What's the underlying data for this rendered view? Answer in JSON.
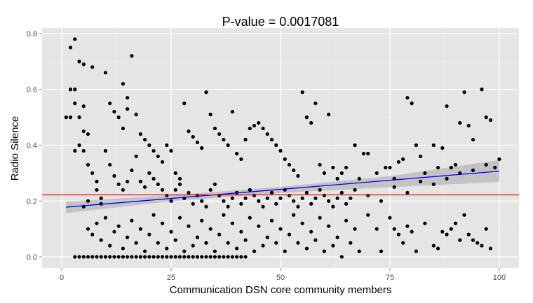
{
  "chart_data": {
    "type": "scatter",
    "title": "P-value = 0.0017081",
    "xlabel": "Communication DSN core community members",
    "ylabel": "Radio Silence",
    "xlim": [
      -4.5,
      104.5
    ],
    "ylim": [
      -0.04,
      0.82
    ],
    "x_ticks": [
      0,
      25,
      50,
      75,
      100
    ],
    "y_ticks": [
      0.0,
      0.2,
      0.4,
      0.6,
      0.8
    ],
    "x_tick_labels": [
      "0",
      "25",
      "50",
      "75",
      "100"
    ],
    "y_tick_labels": [
      "0.0",
      "0.2",
      "0.4",
      "0.6",
      "0.8"
    ],
    "grid": true,
    "legend": "none",
    "colors": {
      "panel": "#e5e5e5",
      "grid": "#ffffff",
      "points": "#000000",
      "fit_line": "#0000ff",
      "confidence_band": "#999999",
      "reference_line": "#ff0000"
    },
    "fit_line": {
      "x": [
        1,
        100
      ],
      "y": [
        0.178,
        0.307
      ]
    },
    "confidence_band": {
      "x": [
        1,
        25,
        50,
        75,
        100
      ],
      "lower": [
        0.157,
        0.199,
        0.229,
        0.25,
        0.268
      ],
      "upper": [
        0.198,
        0.22,
        0.251,
        0.289,
        0.347
      ]
    },
    "reference_line": {
      "y": 0.222
    },
    "points": [
      [
        1,
        0.5
      ],
      [
        2,
        0.5
      ],
      [
        2,
        0.75
      ],
      [
        3,
        0.78
      ],
      [
        2,
        0.6
      ],
      [
        3,
        0.6
      ],
      [
        3,
        0.55
      ],
      [
        3,
        0.38
      ],
      [
        4,
        0.7
      ],
      [
        5,
        0.69
      ],
      [
        7,
        0.68
      ],
      [
        10,
        0.66
      ],
      [
        14,
        0.62
      ],
      [
        16,
        0.72
      ],
      [
        4,
        0.5
      ],
      [
        5,
        0.54
      ],
      [
        4,
        0.4
      ],
      [
        5,
        0.38
      ],
      [
        5,
        0.45
      ],
      [
        6,
        0.44
      ],
      [
        6,
        0.33
      ],
      [
        7,
        0.3
      ],
      [
        6,
        0.2
      ],
      [
        5,
        0.18
      ],
      [
        8,
        0.27
      ],
      [
        8,
        0.24
      ],
      [
        9,
        0.21
      ],
      [
        9,
        0.19
      ],
      [
        11,
        0.55
      ],
      [
        12,
        0.52
      ],
      [
        13,
        0.5
      ],
      [
        14,
        0.46
      ],
      [
        15,
        0.57
      ],
      [
        15,
        0.53
      ],
      [
        17,
        0.51
      ],
      [
        18,
        0.44
      ],
      [
        19,
        0.42
      ],
      [
        20,
        0.4
      ],
      [
        21,
        0.38
      ],
      [
        22,
        0.36
      ],
      [
        23,
        0.34
      ],
      [
        24,
        0.4
      ],
      [
        25,
        0.38
      ],
      [
        26,
        0.3
      ],
      [
        27,
        0.28
      ],
      [
        28,
        0.55
      ],
      [
        29,
        0.45
      ],
      [
        30,
        0.43
      ],
      [
        31,
        0.41
      ],
      [
        32,
        0.39
      ],
      [
        33,
        0.59
      ],
      [
        34,
        0.51
      ],
      [
        35,
        0.46
      ],
      [
        36,
        0.44
      ],
      [
        37,
        0.42
      ],
      [
        38,
        0.4
      ],
      [
        39,
        0.52
      ],
      [
        40,
        0.37
      ],
      [
        41,
        0.35
      ],
      [
        42,
        0.42
      ],
      [
        43,
        0.46
      ],
      [
        44,
        0.47
      ],
      [
        45,
        0.48
      ],
      [
        46,
        0.46
      ],
      [
        47,
        0.44
      ],
      [
        48,
        0.42
      ],
      [
        49,
        0.4
      ],
      [
        50,
        0.38
      ],
      [
        51,
        0.35
      ],
      [
        52,
        0.33
      ],
      [
        53,
        0.31
      ],
      [
        54,
        0.29
      ],
      [
        55,
        0.59
      ],
      [
        56,
        0.5
      ],
      [
        57,
        0.48
      ],
      [
        58,
        0.55
      ],
      [
        59,
        0.33
      ],
      [
        60,
        0.3
      ],
      [
        61,
        0.51
      ],
      [
        62,
        0.32
      ],
      [
        63,
        0.28
      ],
      [
        64,
        0.3
      ],
      [
        65,
        0.32
      ],
      [
        67,
        0.4
      ],
      [
        68,
        0.28
      ],
      [
        69,
        0.37
      ],
      [
        70,
        0.37
      ],
      [
        72,
        0.3
      ],
      [
        74,
        0.32
      ],
      [
        75,
        0.32
      ],
      [
        76,
        0.28
      ],
      [
        77,
        0.34
      ],
      [
        78,
        0.35
      ],
      [
        79,
        0.57
      ],
      [
        80,
        0.55
      ],
      [
        81,
        0.4
      ],
      [
        82,
        0.36
      ],
      [
        83,
        0.3
      ],
      [
        85,
        0.4
      ],
      [
        86,
        0.32
      ],
      [
        87,
        0.39
      ],
      [
        88,
        0.54
      ],
      [
        89,
        0.32
      ],
      [
        90,
        0.33
      ],
      [
        91,
        0.48
      ],
      [
        92,
        0.59
      ],
      [
        93,
        0.47
      ],
      [
        94,
        0.42
      ],
      [
        96,
        0.6
      ],
      [
        97,
        0.5
      ],
      [
        98,
        0.49
      ],
      [
        99,
        0.32
      ],
      [
        100,
        0.35
      ],
      [
        6,
        0.1
      ],
      [
        7,
        0.08
      ],
      [
        8,
        0.12
      ],
      [
        9,
        0.06
      ],
      [
        10,
        0.14
      ],
      [
        11,
        0.04
      ],
      [
        12,
        0.09
      ],
      [
        13,
        0.11
      ],
      [
        14,
        0.03
      ],
      [
        15,
        0.07
      ],
      [
        16,
        0.13
      ],
      [
        17,
        0.05
      ],
      [
        18,
        0.1
      ],
      [
        19,
        0.02
      ],
      [
        20,
        0.08
      ],
      [
        21,
        0.15
      ],
      [
        22,
        0.05
      ],
      [
        23,
        0.12
      ],
      [
        24,
        0.03
      ],
      [
        25,
        0.09
      ],
      [
        26,
        0.06
      ],
      [
        27,
        0.14
      ],
      [
        28,
        0.02
      ],
      [
        29,
        0.11
      ],
      [
        30,
        0.04
      ],
      [
        31,
        0.07
      ],
      [
        32,
        0.13
      ],
      [
        33,
        0.05
      ],
      [
        34,
        0.1
      ],
      [
        35,
        0.02
      ],
      [
        36,
        0.08
      ],
      [
        37,
        0.15
      ],
      [
        38,
        0.05
      ],
      [
        39,
        0.12
      ],
      [
        40,
        0.03
      ],
      [
        41,
        0.09
      ],
      [
        42,
        0.06
      ],
      [
        43,
        0.14
      ],
      [
        44,
        0.02
      ],
      [
        45,
        0.11
      ],
      [
        46,
        0.04
      ],
      [
        47,
        0.07
      ],
      [
        48,
        0.13
      ],
      [
        49,
        0.05
      ],
      [
        50,
        0.1
      ],
      [
        51,
        0.02
      ],
      [
        52,
        0.08
      ],
      [
        53,
        0.15
      ],
      [
        54,
        0.05
      ],
      [
        55,
        0.12
      ],
      [
        56,
        0.03
      ],
      [
        57,
        0.09
      ],
      [
        58,
        0.06
      ],
      [
        59,
        0.14
      ],
      [
        60,
        0.02
      ],
      [
        61,
        0.11
      ],
      [
        62,
        0.04
      ],
      [
        63,
        0.07
      ],
      [
        64,
        0.0
      ],
      [
        65,
        0.13
      ],
      [
        66,
        0.05
      ],
      [
        67,
        0.1
      ],
      [
        68,
        0.02
      ],
      [
        70,
        0.15
      ],
      [
        72,
        0.1
      ],
      [
        73,
        0.02
      ],
      [
        75,
        0.14
      ],
      [
        76,
        0.1
      ],
      [
        77,
        0.08
      ],
      [
        78,
        0.05
      ],
      [
        79,
        0.11
      ],
      [
        80,
        0.09
      ],
      [
        81,
        0.02
      ],
      [
        83,
        0.12
      ],
      [
        85,
        0.04
      ],
      [
        86,
        0.03
      ],
      [
        87,
        0.09
      ],
      [
        88,
        0.08
      ],
      [
        89,
        0.1
      ],
      [
        90,
        0.12
      ],
      [
        91,
        0.06
      ],
      [
        92,
        0.15
      ],
      [
        93,
        0.08
      ],
      [
        94,
        0.06
      ],
      [
        95,
        0.05
      ],
      [
        96,
        0.04
      ],
      [
        97,
        0.1
      ],
      [
        98,
        0.03
      ],
      [
        3,
        0.0
      ],
      [
        4,
        0.0
      ],
      [
        5,
        0.0
      ],
      [
        6,
        0.0
      ],
      [
        7,
        0.0
      ],
      [
        8,
        0.0
      ],
      [
        9,
        0.0
      ],
      [
        10,
        0.0
      ],
      [
        11,
        0.0
      ],
      [
        12,
        0.0
      ],
      [
        13,
        0.0
      ],
      [
        14,
        0.0
      ],
      [
        15,
        0.0
      ],
      [
        16,
        0.0
      ],
      [
        17,
        0.0
      ],
      [
        18,
        0.0
      ],
      [
        19,
        0.0
      ],
      [
        20,
        0.0
      ],
      [
        21,
        0.0
      ],
      [
        22,
        0.0
      ],
      [
        23,
        0.0
      ],
      [
        24,
        0.0
      ],
      [
        25,
        0.0
      ],
      [
        26,
        0.0
      ],
      [
        27,
        0.0
      ],
      [
        28,
        0.0
      ],
      [
        29,
        0.0
      ],
      [
        30,
        0.0
      ],
      [
        31,
        0.0
      ],
      [
        32,
        0.0
      ],
      [
        33,
        0.0
      ],
      [
        34,
        0.0
      ],
      [
        35,
        0.0
      ],
      [
        36,
        0.0
      ],
      [
        37,
        0.0
      ],
      [
        38,
        0.0
      ],
      [
        39,
        0.0
      ],
      [
        40,
        0.0
      ],
      [
        41,
        0.0
      ],
      [
        42,
        0.0
      ],
      [
        10,
        0.38
      ],
      [
        11,
        0.33
      ],
      [
        12,
        0.29
      ],
      [
        13,
        0.26
      ],
      [
        14,
        0.24
      ],
      [
        15,
        0.27
      ],
      [
        16,
        0.31
      ],
      [
        17,
        0.36
      ],
      [
        18,
        0.27
      ],
      [
        19,
        0.25
      ],
      [
        20,
        0.3
      ],
      [
        21,
        0.28
      ],
      [
        22,
        0.26
      ],
      [
        23,
        0.24
      ],
      [
        24,
        0.22
      ],
      [
        25,
        0.2
      ],
      [
        26,
        0.24
      ],
      [
        27,
        0.26
      ],
      [
        28,
        0.21
      ],
      [
        29,
        0.23
      ],
      [
        30,
        0.19
      ],
      [
        31,
        0.22
      ],
      [
        32,
        0.2
      ],
      [
        33,
        0.18
      ],
      [
        34,
        0.24
      ],
      [
        35,
        0.26
      ],
      [
        36,
        0.22
      ],
      [
        37,
        0.2
      ],
      [
        38,
        0.18
      ],
      [
        39,
        0.21
      ],
      [
        40,
        0.23
      ],
      [
        41,
        0.19
      ],
      [
        42,
        0.21
      ],
      [
        43,
        0.24
      ],
      [
        44,
        0.22
      ],
      [
        45,
        0.2
      ],
      [
        46,
        0.18
      ],
      [
        47,
        0.21
      ],
      [
        48,
        0.23
      ],
      [
        49,
        0.19
      ],
      [
        50,
        0.21
      ],
      [
        51,
        0.24
      ],
      [
        52,
        0.22
      ],
      [
        53,
        0.2
      ],
      [
        54,
        0.18
      ],
      [
        55,
        0.21
      ],
      [
        56,
        0.23
      ],
      [
        57,
        0.19
      ],
      [
        58,
        0.21
      ],
      [
        59,
        0.24
      ],
      [
        60,
        0.22
      ],
      [
        61,
        0.2
      ],
      [
        62,
        0.18
      ],
      [
        63,
        0.21
      ],
      [
        64,
        0.23
      ],
      [
        65,
        0.19
      ],
      [
        66,
        0.21
      ],
      [
        67,
        0.24
      ],
      [
        70,
        0.22
      ],
      [
        73,
        0.2
      ],
      [
        76,
        0.25
      ],
      [
        79,
        0.23
      ],
      [
        82,
        0.27
      ],
      [
        85,
        0.26
      ],
      [
        88,
        0.28
      ],
      [
        91,
        0.3
      ],
      [
        94,
        0.31
      ],
      [
        97,
        0.33
      ]
    ]
  }
}
